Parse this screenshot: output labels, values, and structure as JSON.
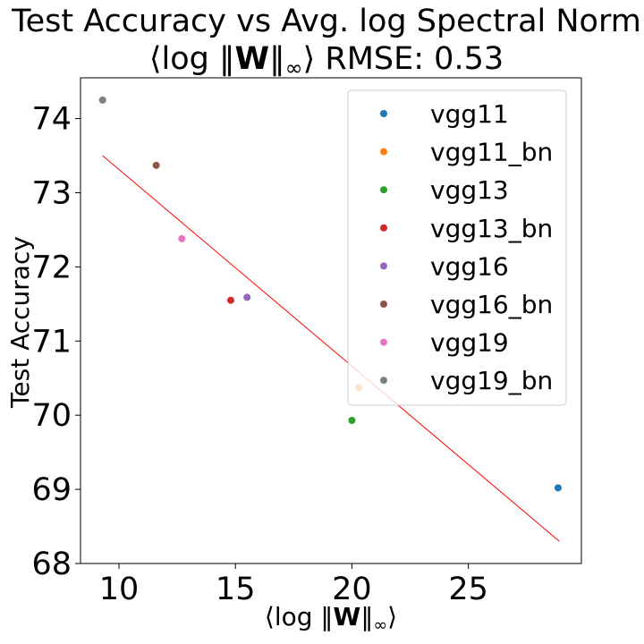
{
  "chart_data": {
    "type": "scatter",
    "title_line1": "Test Accuracy vs Avg. log Spectral Norm",
    "title_line2": {
      "prefix": "⟨log ‖",
      "bold": "W",
      "suffix": "‖",
      "sub": "∞",
      "tail": "⟩ RMSE: 0.53"
    },
    "xlabel": {
      "prefix": "⟨log ‖",
      "bold": "W",
      "suffix": "‖",
      "sub": "∞",
      "tail": "⟩"
    },
    "ylabel": "Test Accuracy",
    "xlim": [
      8.35,
      29.85
    ],
    "ylim": [
      68.0,
      74.55
    ],
    "xticks": [
      10,
      15,
      20,
      25
    ],
    "yticks": [
      68,
      69,
      70,
      71,
      72,
      73,
      74
    ],
    "grid": false,
    "legend_position": "top-right",
    "series": [
      {
        "name": "vgg11",
        "color": "#1f77b4",
        "points": [
          [
            28.85,
            69.02
          ]
        ]
      },
      {
        "name": "vgg11_bn",
        "color": "#ff7f0e",
        "points": [
          [
            20.3,
            70.37
          ]
        ]
      },
      {
        "name": "vgg13",
        "color": "#2ca02c",
        "points": [
          [
            20.0,
            69.93
          ]
        ]
      },
      {
        "name": "vgg13_bn",
        "color": "#d62728",
        "points": [
          [
            14.8,
            71.55
          ]
        ]
      },
      {
        "name": "vgg16",
        "color": "#9467bd",
        "points": [
          [
            15.5,
            71.59
          ]
        ]
      },
      {
        "name": "vgg16_bn",
        "color": "#8c564b",
        "points": [
          [
            11.6,
            73.37
          ]
        ]
      },
      {
        "name": "vgg19",
        "color": "#e377c2",
        "points": [
          [
            12.7,
            72.38
          ]
        ]
      },
      {
        "name": "vgg19_bn",
        "color": "#7f7f7f",
        "points": [
          [
            9.3,
            74.25
          ]
        ]
      }
    ],
    "fit_line": {
      "color": "#ff0000",
      "points": [
        [
          9.3,
          73.5
        ],
        [
          28.9,
          68.3
        ]
      ]
    }
  }
}
